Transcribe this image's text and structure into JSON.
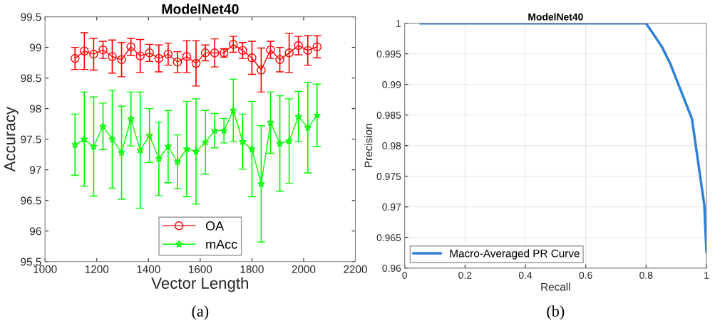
{
  "chart_data": [
    {
      "type": "line",
      "title": "ModelNet40",
      "xlabel": "Vector Length",
      "ylabel": "Accuracy",
      "x": [
        1116,
        1152,
        1188,
        1224,
        1260,
        1296,
        1332,
        1368,
        1404,
        1440,
        1476,
        1512,
        1548,
        1584,
        1620,
        1656,
        1692,
        1728,
        1764,
        1800,
        1836,
        1872,
        1908,
        1944,
        1980,
        2016,
        2052
      ],
      "series": [
        {
          "name": "OA",
          "color": "#ff0000",
          "marker": "circle",
          "values": [
            98.82,
            98.94,
            98.89,
            98.96,
            98.85,
            98.8,
            99.01,
            98.86,
            98.91,
            98.82,
            98.89,
            98.76,
            98.85,
            98.74,
            98.91,
            98.91,
            98.91,
            99.05,
            98.95,
            98.83,
            98.63,
            98.96,
            98.8,
            98.91,
            99.03,
            98.95,
            99.01
          ],
          "errors": [
            0.18,
            0.3,
            0.26,
            0.14,
            0.27,
            0.28,
            0.14,
            0.27,
            0.14,
            0.22,
            0.18,
            0.17,
            0.26,
            0.37,
            0.13,
            0.23,
            0.07,
            0.13,
            0.13,
            0.27,
            0.36,
            0.14,
            0.2,
            0.32,
            0.15,
            0.24,
            0.18
          ]
        },
        {
          "name": "mAcc",
          "color": "#00ff00",
          "marker": "star",
          "values": [
            97.41,
            97.5,
            97.38,
            97.71,
            97.5,
            97.28,
            97.83,
            97.32,
            97.56,
            97.18,
            97.38,
            97.13,
            97.34,
            97.3,
            97.45,
            97.64,
            97.64,
            97.97,
            97.46,
            97.34,
            96.77,
            97.77,
            97.43,
            97.47,
            97.87,
            97.69,
            97.89
          ],
          "errors": [
            0.5,
            0.77,
            0.81,
            0.38,
            0.8,
            0.76,
            0.44,
            0.95,
            0.44,
            0.6,
            0.59,
            0.44,
            0.78,
            0.86,
            0.52,
            0.28,
            0.2,
            0.51,
            0.45,
            0.78,
            0.95,
            0.5,
            0.78,
            0.69,
            0.41,
            0.74,
            0.51
          ]
        }
      ],
      "xlim": [
        1000,
        2200
      ],
      "xticks": [
        1000,
        1200,
        1400,
        1600,
        1800,
        2000,
        2200
      ],
      "ylim": [
        95.5,
        99.5
      ],
      "yticks": [
        95.5,
        96,
        96.5,
        97,
        97.5,
        98,
        98.5,
        99,
        99.5
      ],
      "grid": false,
      "legend": "bottom",
      "annotations": [
        "(a)"
      ]
    },
    {
      "type": "line",
      "title": "ModelNet40",
      "xlabel": "Recall",
      "ylabel": "Precision",
      "series": [
        {
          "name": "Macro-Averaged PR Curve",
          "color": "#2e7fd6",
          "x": [
            0.053,
            0.8,
            0.852,
            0.881,
            0.952,
            0.993,
            1
          ],
          "values": [
            1,
            1,
            0.9962,
            0.9933,
            0.9844,
            0.9703,
            0.9627
          ]
        }
      ],
      "xlim": [
        0,
        1
      ],
      "xticks": [
        0,
        0.2,
        0.4,
        0.6,
        0.8,
        1
      ],
      "ylim": [
        0.96,
        1
      ],
      "yticks": [
        0.96,
        0.965,
        0.97,
        0.975,
        0.98,
        0.985,
        0.99,
        0.995,
        1
      ],
      "grid": true,
      "legend": "bottom left",
      "marker": "none",
      "annotations": [
        "(b)"
      ]
    }
  ]
}
